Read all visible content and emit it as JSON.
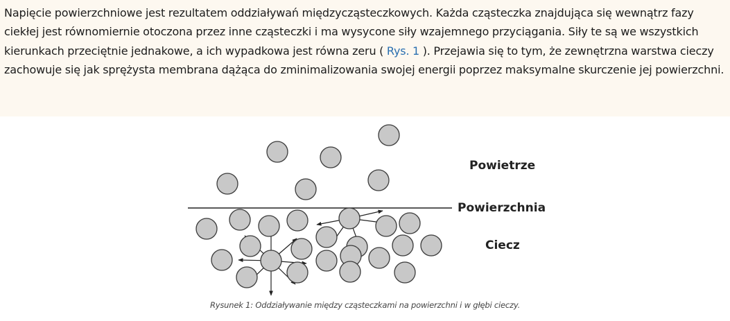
{
  "paragraph": {
    "before_link": "Napięcie powierzchniowe jest rezultatem oddziaływań międzycząsteczkowych. Każda cząsteczka znajdująca się wewnątrz fazy ciekłej jest równomiernie otoczona przez inne cząsteczki i ma wysycone siły wzajemnego przyciągania. Siły te są we wszystkich kierunkach przeciętnie jednakowe, a ich wypadkowa jest równa zeru (",
    "link_text": "Rys. 1",
    "after_link": "). Przejawia się to tym, że zewnętrzna warstwa cieczy zachowuje się jak sprężysta membrana dążąca do zminimalizowania swojej energii poprzez maksymalne skurczenie jej powierzchni."
  },
  "figure": {
    "label_air": "Powietrze",
    "label_surface": "Powierzchnia",
    "label_liquid": "Ciecz",
    "molecule_color": "#c8c8c8",
    "caption": "Rysunek 1: Oddziaływanie między cząsteczkami na powierzchni i w głębi cieczy."
  },
  "colors": {
    "text_background": "#fdf8f0",
    "link": "#2a6fb0"
  }
}
